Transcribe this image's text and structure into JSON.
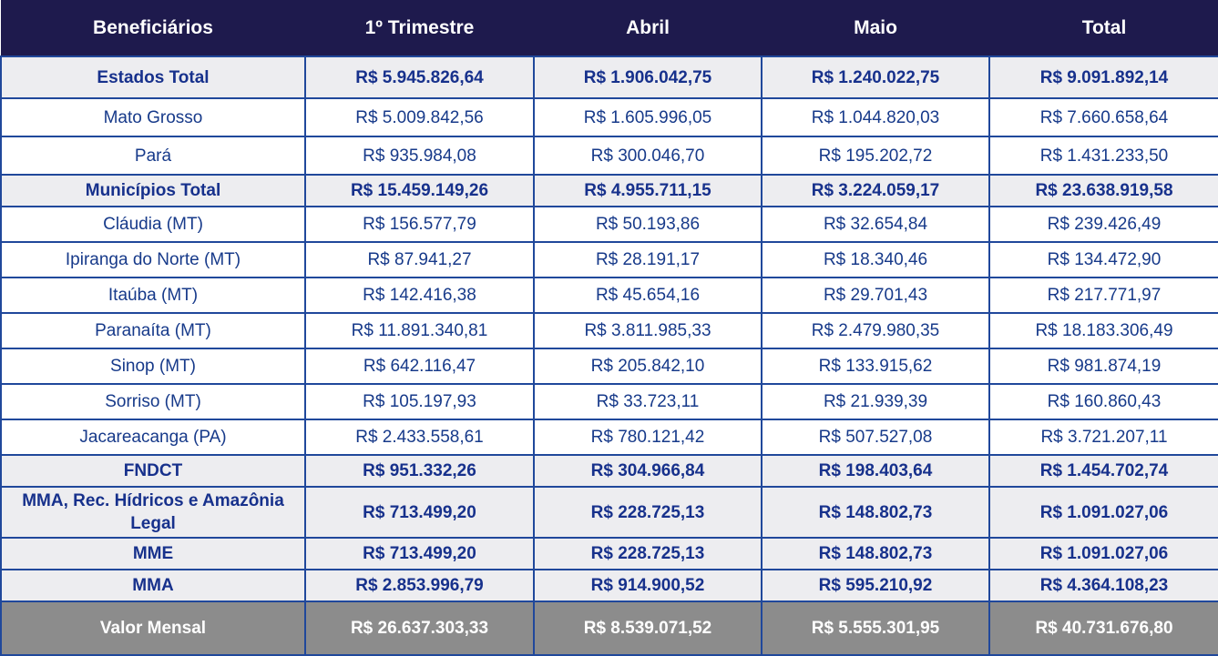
{
  "headers": [
    "Beneficiários",
    "1º Trimestre",
    "Abril",
    "Maio",
    "Total"
  ],
  "rows": [
    {
      "type": "subtotal",
      "cells": [
        "Estados Total",
        "R$ 5.945.826,64",
        "R$ 1.906.042,75",
        "R$ 1.240.022,75",
        "R$ 9.091.892,14"
      ]
    },
    {
      "type": "detail",
      "cells": [
        "Mato Grosso",
        "R$ 5.009.842,56",
        "R$ 1.605.996,05",
        "R$ 1.044.820,03",
        "R$ 7.660.658,64"
      ]
    },
    {
      "type": "detail",
      "cells": [
        "Pará",
        "R$ 935.984,08",
        "R$ 300.046,70",
        "R$ 195.202,72",
        "R$ 1.431.233,50"
      ]
    },
    {
      "type": "subtotal",
      "cells": [
        "Municípios Total",
        "R$ 15.459.149,26",
        "R$ 4.955.711,15",
        "R$ 3.224.059,17",
        "R$ 23.638.919,58"
      ]
    },
    {
      "type": "detail",
      "cells": [
        "Cláudia (MT)",
        "R$ 156.577,79",
        "R$ 50.193,86",
        "R$ 32.654,84",
        "R$ 239.426,49"
      ]
    },
    {
      "type": "detail",
      "cells": [
        "Ipiranga do Norte (MT)",
        "R$ 87.941,27",
        "R$ 28.191,17",
        "R$ 18.340,46",
        "R$ 134.472,90"
      ]
    },
    {
      "type": "detail",
      "cells": [
        "Itaúba (MT)",
        "R$ 142.416,38",
        "R$ 45.654,16",
        "R$ 29.701,43",
        "R$ 217.771,97"
      ]
    },
    {
      "type": "detail",
      "cells": [
        "Paranaíta (MT)",
        "R$ 11.891.340,81",
        "R$ 3.811.985,33",
        "R$ 2.479.980,35",
        "R$ 18.183.306,49"
      ]
    },
    {
      "type": "detail",
      "cells": [
        "Sinop (MT)",
        "R$ 642.116,47",
        "R$ 205.842,10",
        "R$ 133.915,62",
        "R$ 981.874,19"
      ]
    },
    {
      "type": "detail",
      "cells": [
        "Sorriso (MT)",
        "R$ 105.197,93",
        "R$ 33.723,11",
        "R$ 21.939,39",
        "R$ 160.860,43"
      ]
    },
    {
      "type": "detail",
      "cells": [
        "Jacareacanga (PA)",
        "R$ 2.433.558,61",
        "R$ 780.121,42",
        "R$ 507.527,08",
        "R$ 3.721.207,11"
      ]
    },
    {
      "type": "subtotal",
      "cells": [
        "FNDCT",
        "R$ 951.332,26",
        "R$ 304.966,84",
        "R$ 198.403,64",
        "R$ 1.454.702,74"
      ]
    },
    {
      "type": "subtotal",
      "cells": [
        "MMA, Rec. Hídricos e Amazônia Legal",
        "R$ 713.499,20",
        "R$ 228.725,13",
        "R$ 148.802,73",
        "R$ 1.091.027,06"
      ]
    },
    {
      "type": "subtotal",
      "cells": [
        "MME",
        "R$ 713.499,20",
        "R$ 228.725,13",
        "R$ 148.802,73",
        "R$ 1.091.027,06"
      ]
    },
    {
      "type": "subtotal",
      "cells": [
        "MMA",
        "R$ 2.853.996,79",
        "R$ 914.900,52",
        "R$ 595.210,92",
        "R$ 4.364.108,23"
      ]
    },
    {
      "type": "grand",
      "cells": [
        "Valor Mensal",
        "R$ 26.637.303,33",
        "R$ 8.539.071,52",
        "R$ 5.555.301,95",
        "R$ 40.731.676,80"
      ]
    }
  ],
  "colors": {
    "header_bg": "#1e1a4d",
    "subtotal_bg": "#ededf0",
    "grand_bg": "#8c8c8c",
    "border": "#20489b",
    "text_blue": "#173a8a"
  }
}
